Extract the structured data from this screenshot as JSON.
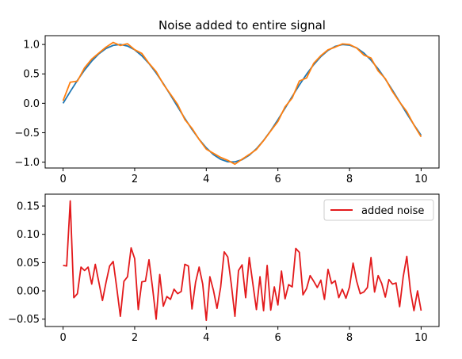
{
  "chart_data": [
    {
      "type": "line",
      "title": "Noise added to entire signal",
      "xlabel": "",
      "ylabel": "",
      "xlim": [
        -0.5,
        10.5
      ],
      "ylim": [
        -1.1,
        1.15
      ],
      "x_ticks": [
        0,
        2,
        4,
        6,
        8,
        10
      ],
      "y_ticks": [
        -1.0,
        -0.5,
        0.0,
        0.5,
        1.0
      ],
      "x_tick_labels": [
        "0",
        "2",
        "4",
        "6",
        "8",
        "10"
      ],
      "y_tick_labels": [
        "−1.0",
        "−0.5",
        "0.0",
        "0.5",
        "1.0"
      ],
      "grid": false,
      "series": [
        {
          "color": "#1f77b4",
          "x": [
            0,
            0.2,
            0.4,
            0.6,
            0.8,
            1.0,
            1.2,
            1.4,
            1.6,
            1.8,
            2.0,
            2.2,
            2.4,
            2.6,
            2.8,
            3.0,
            3.2,
            3.4,
            3.6,
            3.8,
            4.0,
            4.2,
            4.4,
            4.6,
            4.8,
            5.0,
            5.2,
            5.4,
            5.6,
            5.8,
            6.0,
            6.2,
            6.4,
            6.6,
            6.8,
            7.0,
            7.2,
            7.4,
            7.6,
            7.8,
            8.0,
            8.2,
            8.4,
            8.6,
            8.8,
            9.0,
            9.2,
            9.4,
            9.6,
            9.8,
            10.0
          ],
          "values": [
            0,
            0.199,
            0.389,
            0.565,
            0.717,
            0.841,
            0.932,
            0.985,
            1.0,
            0.974,
            0.909,
            0.808,
            0.675,
            0.516,
            0.335,
            0.141,
            -0.058,
            -0.256,
            -0.443,
            -0.612,
            -0.757,
            -0.872,
            -0.952,
            -0.994,
            -0.996,
            -0.959,
            -0.883,
            -0.773,
            -0.631,
            -0.465,
            -0.279,
            -0.083,
            0.117,
            0.312,
            0.494,
            0.657,
            0.794,
            0.899,
            0.968,
            0.999,
            0.989,
            0.941,
            0.855,
            0.734,
            0.585,
            0.412,
            0.223,
            0.025,
            -0.174,
            -0.366,
            -0.544
          ]
        },
        {
          "color": "#ff7f0e",
          "x": [
            0,
            0.2,
            0.4,
            0.6,
            0.8,
            1.0,
            1.2,
            1.4,
            1.6,
            1.8,
            2.0,
            2.2,
            2.4,
            2.6,
            2.8,
            3.0,
            3.2,
            3.4,
            3.6,
            3.8,
            4.0,
            4.2,
            4.4,
            4.6,
            4.8,
            5.0,
            5.2,
            5.4,
            5.6,
            5.8,
            6.0,
            6.2,
            6.4,
            6.6,
            6.8,
            7.0,
            7.2,
            7.4,
            7.6,
            7.8,
            8.0,
            8.2,
            8.4,
            8.6,
            8.8,
            9.0,
            9.2,
            9.4,
            9.6,
            9.8,
            10.0
          ],
          "values": [
            0.045,
            0.359,
            0.377,
            0.604,
            0.752,
            0.855,
            0.955,
            1.035,
            0.983,
            1.013,
            0.912,
            0.848,
            0.68,
            0.54,
            0.325,
            0.155,
            -0.02,
            -0.275,
            -0.425,
            -0.614,
            -0.78,
            -0.85,
            -0.92,
            -0.97,
            -1.035,
            -0.95,
            -0.87,
            -0.785,
            -0.635,
            -0.47,
            -0.31,
            -0.06,
            0.09,
            0.38,
            0.43,
            0.68,
            0.81,
            0.91,
            0.955,
            1.01,
            1.0,
            0.94,
            0.82,
            0.77,
            0.55,
            0.42,
            0.2,
            0.02,
            -0.14,
            -0.37,
            -0.57
          ]
        }
      ]
    },
    {
      "type": "line",
      "title": "",
      "xlabel": "",
      "ylabel": "",
      "xlim": [
        -0.5,
        10.5
      ],
      "ylim": [
        -0.063,
        0.171
      ],
      "x_ticks": [
        0,
        2,
        4,
        6,
        8,
        10
      ],
      "y_ticks": [
        -0.05,
        0.0,
        0.05,
        0.1,
        0.15
      ],
      "x_tick_labels": [
        "0",
        "2",
        "4",
        "6",
        "8",
        "10"
      ],
      "y_tick_labels": [
        "−0.05",
        "0.00",
        "0.05",
        "0.10",
        "0.15"
      ],
      "grid": false,
      "legend": {
        "placement": "upper-right"
      },
      "series": [
        {
          "name": "added noise",
          "color": "#e31a1c",
          "x": [
            0,
            0.1,
            0.2,
            0.3,
            0.4,
            0.5,
            0.6,
            0.7,
            0.8,
            0.9,
            1.0,
            1.1,
            1.2,
            1.3,
            1.4,
            1.5,
            1.6,
            1.7,
            1.8,
            1.9,
            2.0,
            2.1,
            2.2,
            2.3,
            2.4,
            2.5,
            2.6,
            2.7,
            2.8,
            2.9,
            3.0,
            3.1,
            3.2,
            3.3,
            3.4,
            3.5,
            3.6,
            3.7,
            3.8,
            3.9,
            4.0,
            4.1,
            4.2,
            4.3,
            4.4,
            4.5,
            4.6,
            4.7,
            4.8,
            4.9,
            5.0,
            5.1,
            5.2,
            5.3,
            5.4,
            5.5,
            5.6,
            5.7,
            5.8,
            5.9,
            6.0,
            6.1,
            6.2,
            6.3,
            6.4,
            6.5,
            6.6,
            6.7,
            6.8,
            6.9,
            7.0,
            7.1,
            7.2,
            7.3,
            7.4,
            7.5,
            7.6,
            7.7,
            7.8,
            7.9,
            8.0,
            8.1,
            8.2,
            8.3,
            8.4,
            8.5,
            8.6,
            8.7,
            8.8,
            8.9,
            9.0,
            9.1,
            9.2,
            9.3,
            9.4,
            9.5,
            9.6,
            9.7,
            9.8,
            9.9,
            10.0
          ],
          "values": [
            0.045,
            0.044,
            0.159,
            -0.012,
            -0.005,
            0.042,
            0.036,
            0.042,
            0.012,
            0.047,
            0.015,
            -0.017,
            0.015,
            0.044,
            0.052,
            0.005,
            -0.045,
            0.017,
            0.025,
            0.076,
            0.057,
            -0.033,
            0.016,
            0.017,
            0.055,
            0.005,
            -0.05,
            0.029,
            -0.027,
            -0.01,
            -0.015,
            0.003,
            -0.005,
            -0.001,
            0.047,
            0.044,
            -0.032,
            0.015,
            0.042,
            0.012,
            -0.052,
            0.025,
            0.001,
            -0.031,
            0.006,
            0.069,
            0.06,
            0.011,
            -0.045,
            0.036,
            0.046,
            -0.012,
            0.059,
            0.013,
            -0.033,
            0.025,
            -0.035,
            0.045,
            -0.034,
            0.007,
            -0.025,
            0.035,
            -0.014,
            0.011,
            0.007,
            0.075,
            0.068,
            -0.007,
            0.004,
            0.027,
            0.017,
            0.006,
            0.019,
            -0.015,
            0.038,
            0.013,
            0.018,
            -0.012,
            0.003,
            -0.013,
            0.007,
            0.049,
            0.017,
            -0.005,
            -0.002,
            0.006,
            0.059,
            -0.002,
            0.027,
            0.013,
            -0.011,
            0.02,
            0.012,
            0.014,
            -0.028,
            0.025,
            0.061,
            0.001,
            -0.035,
            0.0,
            -0.035
          ]
        }
      ]
    }
  ]
}
